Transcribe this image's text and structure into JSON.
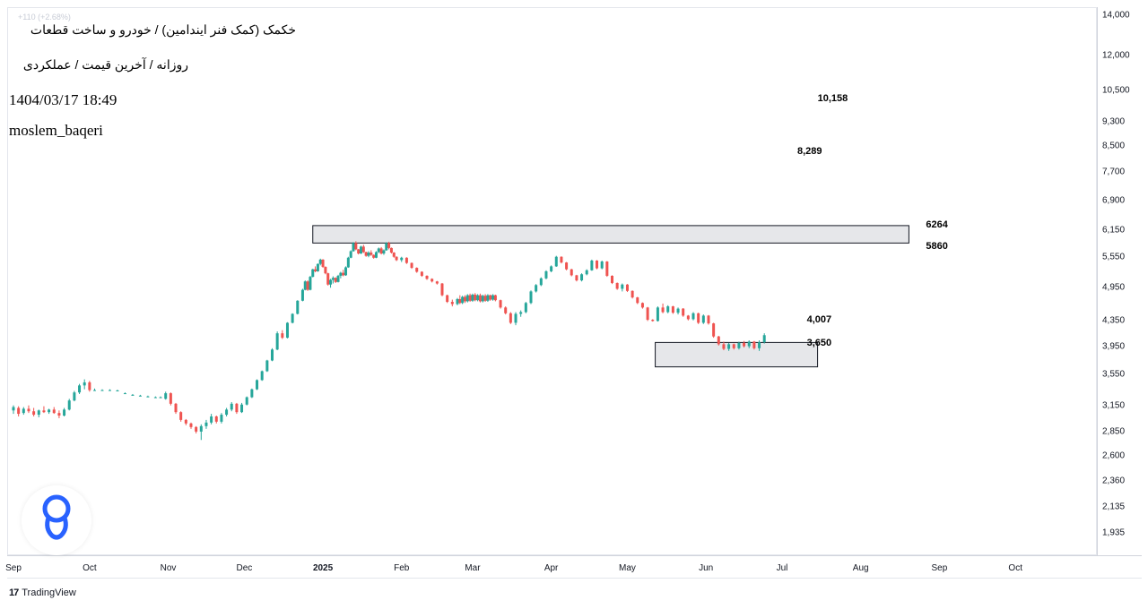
{
  "header": {
    "title": "خکمک (کمک فنر ایندامین) / خودرو و ساخت قطعات",
    "subtitle": "روزانه / آخرین قیمت / عملکردی",
    "datetime": "1404/03/17 18:49",
    "author": "moslem_baqeri",
    "faint_line": "+110 (+2.68%)"
  },
  "branding": {
    "name": "TradingView",
    "mark": "17"
  },
  "colors": {
    "up": "#26a69a",
    "down": "#ef5350",
    "zone_fill": "#e6e7ea",
    "zone_stroke": "#131722",
    "axis_text": "#131722"
  },
  "chart_data": {
    "type": "candlestick",
    "timeframe": "daily",
    "price_scale": "log",
    "price_axis_ticks": [
      "14,000",
      "12,000",
      "10,500",
      "9,300",
      "8,500",
      "7,700",
      "6,900",
      "6,150",
      "5,550",
      "4,950",
      "4,350",
      "3,950",
      "3,550",
      "3,150",
      "2,850",
      "2,600",
      "2,360",
      "2,135",
      "1,935"
    ],
    "time_axis_labels": [
      {
        "text": "Sep",
        "year": false
      },
      {
        "text": "Oct",
        "year": false
      },
      {
        "text": "Nov",
        "year": false
      },
      {
        "text": "Dec",
        "year": false
      },
      {
        "text": "2025",
        "year": true
      },
      {
        "text": "Feb",
        "year": false
      },
      {
        "text": "Mar",
        "year": false
      },
      {
        "text": "Apr",
        "year": false
      },
      {
        "text": "May",
        "year": false
      },
      {
        "text": "Jun",
        "year": false
      },
      {
        "text": "Jul",
        "year": false
      },
      {
        "text": "Aug",
        "year": false
      },
      {
        "text": "Sep",
        "year": false
      },
      {
        "text": "Oct",
        "year": false
      }
    ],
    "zones": [
      {
        "top": 6264,
        "bottom": 5860,
        "from": "2024-12-28",
        "to": "2025-08-20",
        "top_label": "6264",
        "bottom_label": "5860"
      },
      {
        "top": 4007,
        "bottom": 3650,
        "from": "2025-05-12",
        "to": "2025-07-15",
        "top_label": "4,007",
        "bottom_label": "3,650"
      }
    ],
    "targets": [
      {
        "label": "10,158",
        "price": 10158,
        "date": "2025-07-15"
      },
      {
        "label": "8,289",
        "price": 8289,
        "date": "2025-07-07"
      }
    ],
    "candles": [
      [
        "2024-09-01",
        3090,
        3150,
        3050,
        3130
      ],
      [
        "2024-09-03",
        3120,
        3140,
        3020,
        3050
      ],
      [
        "2024-09-05",
        3060,
        3130,
        3040,
        3110
      ],
      [
        "2024-09-07",
        3110,
        3150,
        3060,
        3080
      ],
      [
        "2024-09-09",
        3080,
        3120,
        3020,
        3040
      ],
      [
        "2024-09-11",
        3040,
        3100,
        3010,
        3090
      ],
      [
        "2024-09-13",
        3090,
        3140,
        3060,
        3070
      ],
      [
        "2024-09-15",
        3070,
        3110,
        3050,
        3100
      ],
      [
        "2024-09-17",
        3100,
        3130,
        3050,
        3060
      ],
      [
        "2024-09-19",
        3060,
        3090,
        3000,
        3030
      ],
      [
        "2024-09-21",
        3030,
        3120,
        3020,
        3100
      ],
      [
        "2024-09-23",
        3100,
        3230,
        3090,
        3210
      ],
      [
        "2024-09-25",
        3210,
        3330,
        3200,
        3310
      ],
      [
        "2024-09-27",
        3310,
        3420,
        3290,
        3400
      ],
      [
        "2024-09-29",
        3400,
        3480,
        3350,
        3440
      ],
      [
        "2024-10-01",
        3440,
        3460,
        3320,
        3340
      ],
      [
        "2024-10-03",
        3340,
        3360,
        3330,
        3340
      ],
      [
        "2024-10-06",
        3340,
        3350,
        3330,
        3340
      ],
      [
        "2024-10-09",
        3340,
        3350,
        3330,
        3340
      ],
      [
        "2024-10-12",
        3335,
        3345,
        3325,
        3335
      ],
      [
        "2024-10-15",
        3300,
        3310,
        3290,
        3300
      ],
      [
        "2024-10-18",
        3280,
        3290,
        3270,
        3280
      ],
      [
        "2024-10-21",
        3270,
        3280,
        3260,
        3270
      ],
      [
        "2024-10-24",
        3260,
        3270,
        3250,
        3260
      ],
      [
        "2024-10-27",
        3250,
        3260,
        3240,
        3250
      ],
      [
        "2024-10-29",
        3250,
        3260,
        3240,
        3250
      ],
      [
        "2024-10-31",
        3230,
        3320,
        3220,
        3300
      ],
      [
        "2024-11-02",
        3300,
        3310,
        3150,
        3170
      ],
      [
        "2024-11-04",
        3170,
        3180,
        3050,
        3070
      ],
      [
        "2024-11-06",
        3070,
        3080,
        2960,
        2980
      ],
      [
        "2024-11-08",
        2980,
        2990,
        2920,
        2940
      ],
      [
        "2024-11-10",
        2940,
        2950,
        2880,
        2900
      ],
      [
        "2024-11-12",
        2900,
        2910,
        2830,
        2850
      ],
      [
        "2024-11-14",
        2850,
        2930,
        2760,
        2910
      ],
      [
        "2024-11-16",
        2910,
        2980,
        2880,
        2950
      ],
      [
        "2024-11-18",
        2950,
        3050,
        2930,
        3020
      ],
      [
        "2024-11-20",
        3020,
        3030,
        2940,
        2960
      ],
      [
        "2024-11-22",
        2960,
        3060,
        2940,
        3040
      ],
      [
        "2024-11-24",
        3040,
        3120,
        3020,
        3100
      ],
      [
        "2024-11-26",
        3100,
        3190,
        3080,
        3170
      ],
      [
        "2024-11-28",
        3170,
        3180,
        3050,
        3070
      ],
      [
        "2024-11-30",
        3070,
        3180,
        3060,
        3160
      ],
      [
        "2024-12-02",
        3160,
        3260,
        3150,
        3250
      ],
      [
        "2024-12-04",
        3250,
        3360,
        3240,
        3350
      ],
      [
        "2024-12-06",
        3350,
        3480,
        3340,
        3470
      ],
      [
        "2024-12-08",
        3470,
        3600,
        3460,
        3590
      ],
      [
        "2024-12-10",
        3590,
        3750,
        3580,
        3740
      ],
      [
        "2024-12-12",
        3740,
        3920,
        3730,
        3900
      ],
      [
        "2024-12-14",
        3900,
        4180,
        3890,
        4150
      ],
      [
        "2024-12-16",
        4150,
        4200,
        4060,
        4080
      ],
      [
        "2024-12-18",
        4080,
        4330,
        4070,
        4320
      ],
      [
        "2024-12-20",
        4320,
        4480,
        4310,
        4470
      ],
      [
        "2024-12-22",
        4470,
        4710,
        4460,
        4700
      ],
      [
        "2024-12-24",
        4700,
        4920,
        4690,
        4900
      ],
      [
        "2024-12-25",
        4900,
        5080,
        4890,
        5060
      ],
      [
        "2024-12-26",
        5060,
        5080,
        4880,
        4900
      ],
      [
        "2024-12-27",
        4900,
        5170,
        4890,
        5150
      ],
      [
        "2024-12-28",
        5150,
        5310,
        5140,
        5300
      ],
      [
        "2024-12-29",
        5300,
        5360,
        5240,
        5260
      ],
      [
        "2024-12-30",
        5260,
        5420,
        5250,
        5410
      ],
      [
        "2024-12-31",
        5410,
        5520,
        5380,
        5500
      ],
      [
        "2025-01-01",
        5500,
        5510,
        5330,
        5350
      ],
      [
        "2025-01-02",
        5350,
        5360,
        5200,
        5220
      ],
      [
        "2025-01-03",
        5220,
        5230,
        4980,
        5000
      ],
      [
        "2025-01-04",
        5000,
        5110,
        4940,
        5090
      ],
      [
        "2025-01-05",
        5090,
        5160,
        5020,
        5130
      ],
      [
        "2025-01-06",
        5130,
        5140,
        5030,
        5050
      ],
      [
        "2025-01-07",
        5050,
        5190,
        5040,
        5170
      ],
      [
        "2025-01-08",
        5170,
        5250,
        5120,
        5230
      ],
      [
        "2025-01-09",
        5230,
        5290,
        5160,
        5180
      ],
      [
        "2025-01-10",
        5180,
        5360,
        5170,
        5340
      ],
      [
        "2025-01-11",
        5340,
        5560,
        5330,
        5540
      ],
      [
        "2025-01-12",
        5540,
        5700,
        5530,
        5680
      ],
      [
        "2025-01-13",
        5680,
        5880,
        5670,
        5860
      ],
      [
        "2025-01-14",
        5860,
        5900,
        5700,
        5720
      ],
      [
        "2025-01-15",
        5720,
        5730,
        5610,
        5630
      ],
      [
        "2025-01-16",
        5630,
        5800,
        5620,
        5780
      ],
      [
        "2025-01-17",
        5780,
        5820,
        5640,
        5660
      ],
      [
        "2025-01-18",
        5660,
        5670,
        5560,
        5580
      ],
      [
        "2025-01-19",
        5580,
        5680,
        5550,
        5650
      ],
      [
        "2025-01-20",
        5650,
        5700,
        5580,
        5600
      ],
      [
        "2025-01-21",
        5600,
        5610,
        5520,
        5540
      ],
      [
        "2025-01-22",
        5540,
        5680,
        5530,
        5660
      ],
      [
        "2025-01-23",
        5660,
        5760,
        5640,
        5740
      ],
      [
        "2025-01-24",
        5740,
        5770,
        5610,
        5630
      ],
      [
        "2025-01-25",
        5630,
        5720,
        5600,
        5700
      ],
      [
        "2025-01-26",
        5700,
        5880,
        5690,
        5860
      ],
      [
        "2025-01-27",
        5860,
        5890,
        5720,
        5750
      ],
      [
        "2025-01-28",
        5750,
        5760,
        5630,
        5650
      ],
      [
        "2025-01-29",
        5650,
        5660,
        5540,
        5560
      ],
      [
        "2025-01-30",
        5560,
        5570,
        5470,
        5490
      ],
      [
        "2025-02-01",
        5490,
        5560,
        5450,
        5540
      ],
      [
        "2025-02-03",
        5540,
        5550,
        5410,
        5430
      ],
      [
        "2025-02-05",
        5430,
        5440,
        5310,
        5330
      ],
      [
        "2025-02-07",
        5330,
        5340,
        5230,
        5250
      ],
      [
        "2025-02-09",
        5250,
        5260,
        5150,
        5170
      ],
      [
        "2025-02-11",
        5170,
        5180,
        5090,
        5110
      ],
      [
        "2025-02-13",
        5110,
        5120,
        5040,
        5060
      ],
      [
        "2025-02-15",
        5060,
        5070,
        5000,
        5020
      ],
      [
        "2025-02-17",
        5020,
        5030,
        4780,
        4800
      ],
      [
        "2025-02-19",
        4800,
        4810,
        4660,
        4680
      ],
      [
        "2025-02-21",
        4680,
        4720,
        4600,
        4640
      ],
      [
        "2025-02-23",
        4640,
        4750,
        4620,
        4730
      ],
      [
        "2025-02-24",
        4730,
        4800,
        4640,
        4660
      ],
      [
        "2025-02-25",
        4660,
        4790,
        4640,
        4770
      ],
      [
        "2025-02-26",
        4770,
        4800,
        4660,
        4690
      ],
      [
        "2025-02-27",
        4690,
        4820,
        4670,
        4800
      ],
      [
        "2025-02-28",
        4800,
        4830,
        4680,
        4700
      ],
      [
        "2025-03-01",
        4700,
        4830,
        4680,
        4810
      ],
      [
        "2025-03-02",
        4810,
        4840,
        4690,
        4710
      ],
      [
        "2025-03-03",
        4710,
        4820,
        4690,
        4800
      ],
      [
        "2025-03-04",
        4800,
        4830,
        4670,
        4690
      ],
      [
        "2025-03-05",
        4690,
        4810,
        4670,
        4790
      ],
      [
        "2025-03-06",
        4790,
        4820,
        4680,
        4700
      ],
      [
        "2025-03-07",
        4700,
        4820,
        4680,
        4800
      ],
      [
        "2025-03-08",
        4800,
        4810,
        4700,
        4720
      ],
      [
        "2025-03-09",
        4720,
        4820,
        4700,
        4800
      ],
      [
        "2025-03-10",
        4800,
        4810,
        4690,
        4710
      ],
      [
        "2025-03-12",
        4710,
        4720,
        4560,
        4580
      ],
      [
        "2025-03-14",
        4580,
        4600,
        4460,
        4480
      ],
      [
        "2025-03-16",
        4480,
        4500,
        4300,
        4320
      ],
      [
        "2025-03-18",
        4320,
        4500,
        4280,
        4470
      ],
      [
        "2025-03-20",
        4470,
        4530,
        4420,
        4500
      ],
      [
        "2025-03-22",
        4500,
        4680,
        4480,
        4660
      ],
      [
        "2025-03-24",
        4660,
        4890,
        4640,
        4870
      ],
      [
        "2025-03-26",
        4870,
        5010,
        4850,
        4990
      ],
      [
        "2025-03-28",
        4990,
        5140,
        4970,
        5120
      ],
      [
        "2025-03-30",
        5120,
        5280,
        5100,
        5260
      ],
      [
        "2025-04-01",
        5260,
        5380,
        5240,
        5360
      ],
      [
        "2025-04-03",
        5360,
        5580,
        5350,
        5560
      ],
      [
        "2025-04-05",
        5560,
        5570,
        5420,
        5440
      ],
      [
        "2025-04-07",
        5440,
        5450,
        5280,
        5300
      ],
      [
        "2025-04-09",
        5300,
        5310,
        5160,
        5180
      ],
      [
        "2025-04-11",
        5180,
        5190,
        5060,
        5080
      ],
      [
        "2025-04-13",
        5080,
        5220,
        5060,
        5200
      ],
      [
        "2025-04-15",
        5200,
        5300,
        5180,
        5280
      ],
      [
        "2025-04-17",
        5280,
        5500,
        5270,
        5480
      ],
      [
        "2025-04-19",
        5480,
        5490,
        5300,
        5320
      ],
      [
        "2025-04-21",
        5320,
        5480,
        5300,
        5460
      ],
      [
        "2025-04-23",
        5460,
        5470,
        5150,
        5170
      ],
      [
        "2025-04-25",
        5170,
        5180,
        5010,
        5030
      ],
      [
        "2025-04-27",
        5030,
        5040,
        4900,
        4920
      ],
      [
        "2025-04-29",
        4920,
        5020,
        4870,
        5000
      ],
      [
        "2025-05-01",
        5000,
        5010,
        4860,
        4880
      ],
      [
        "2025-05-03",
        4880,
        4890,
        4740,
        4760
      ],
      [
        "2025-05-05",
        4760,
        4770,
        4640,
        4660
      ],
      [
        "2025-05-07",
        4660,
        4670,
        4560,
        4580
      ],
      [
        "2025-05-09",
        4580,
        4590,
        4350,
        4370
      ],
      [
        "2025-05-11",
        4370,
        4380,
        4340,
        4350
      ],
      [
        "2025-05-13",
        4350,
        4600,
        4340,
        4580
      ],
      [
        "2025-05-15",
        4580,
        4650,
        4480,
        4500
      ],
      [
        "2025-05-17",
        4500,
        4620,
        4480,
        4600
      ],
      [
        "2025-05-19",
        4600,
        4610,
        4470,
        4490
      ],
      [
        "2025-05-21",
        4490,
        4580,
        4460,
        4560
      ],
      [
        "2025-05-23",
        4560,
        4570,
        4420,
        4440
      ],
      [
        "2025-05-25",
        4440,
        4450,
        4360,
        4380
      ],
      [
        "2025-05-27",
        4380,
        4500,
        4360,
        4480
      ],
      [
        "2025-05-29",
        4480,
        4490,
        4300,
        4320
      ],
      [
        "2025-05-31",
        4320,
        4460,
        4300,
        4440
      ],
      [
        "2025-06-02",
        4440,
        4450,
        4290,
        4310
      ],
      [
        "2025-06-04",
        4310,
        4320,
        4080,
        4100
      ],
      [
        "2025-06-06",
        4100,
        4110,
        3960,
        3980
      ],
      [
        "2025-06-08",
        3980,
        4020,
        3890,
        3910
      ],
      [
        "2025-06-10",
        3910,
        4000,
        3880,
        3980
      ],
      [
        "2025-06-12",
        3980,
        3990,
        3900,
        3920
      ],
      [
        "2025-06-14",
        3920,
        4020,
        3900,
        4000
      ],
      [
        "2025-06-16",
        4000,
        4030,
        3930,
        3950
      ],
      [
        "2025-06-18",
        3950,
        4040,
        3920,
        4020
      ],
      [
        "2025-06-20",
        4020,
        4030,
        3900,
        3920
      ],
      [
        "2025-06-22",
        3920,
        4040,
        3880,
        4010
      ],
      [
        "2025-06-24",
        4010,
        4150,
        3990,
        4120
      ]
    ]
  }
}
